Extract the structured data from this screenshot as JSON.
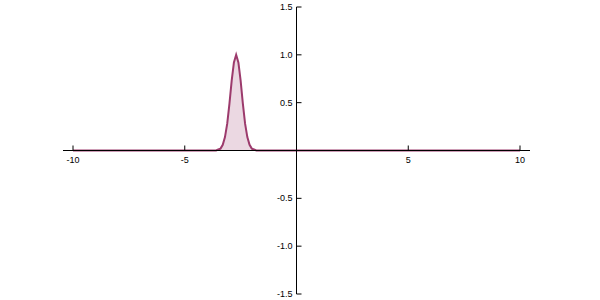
{
  "chart_data": {
    "type": "area",
    "color": "#9c3a6c",
    "x": [
      -10,
      -3.6,
      -3.5,
      -3.4,
      -3.3,
      -3.2,
      -3.1,
      -3.0,
      -2.9,
      -2.8,
      -2.7,
      -2.6,
      -2.5,
      -2.4,
      -2.3,
      -2.2,
      -2.1,
      -2.0,
      -1.9,
      -1.8,
      10
    ],
    "values": [
      0,
      0,
      0.01,
      0.02,
      0.06,
      0.14,
      0.28,
      0.49,
      0.73,
      0.92,
      1,
      0.92,
      0.73,
      0.49,
      0.28,
      0.14,
      0.06,
      0.02,
      0.01,
      0,
      0
    ],
    "xlim": [
      -10,
      10
    ],
    "ylim": [
      -1.5,
      1.5
    ],
    "xticks": [
      -10,
      -5,
      5,
      10
    ],
    "yticks": [
      -1.5,
      {
        "value": -1,
        "label": "-1.0"
      },
      -0.5,
      0.5,
      {
        "value": 1,
        "label": "1.0"
      },
      1.5
    ],
    "grid": false
  }
}
